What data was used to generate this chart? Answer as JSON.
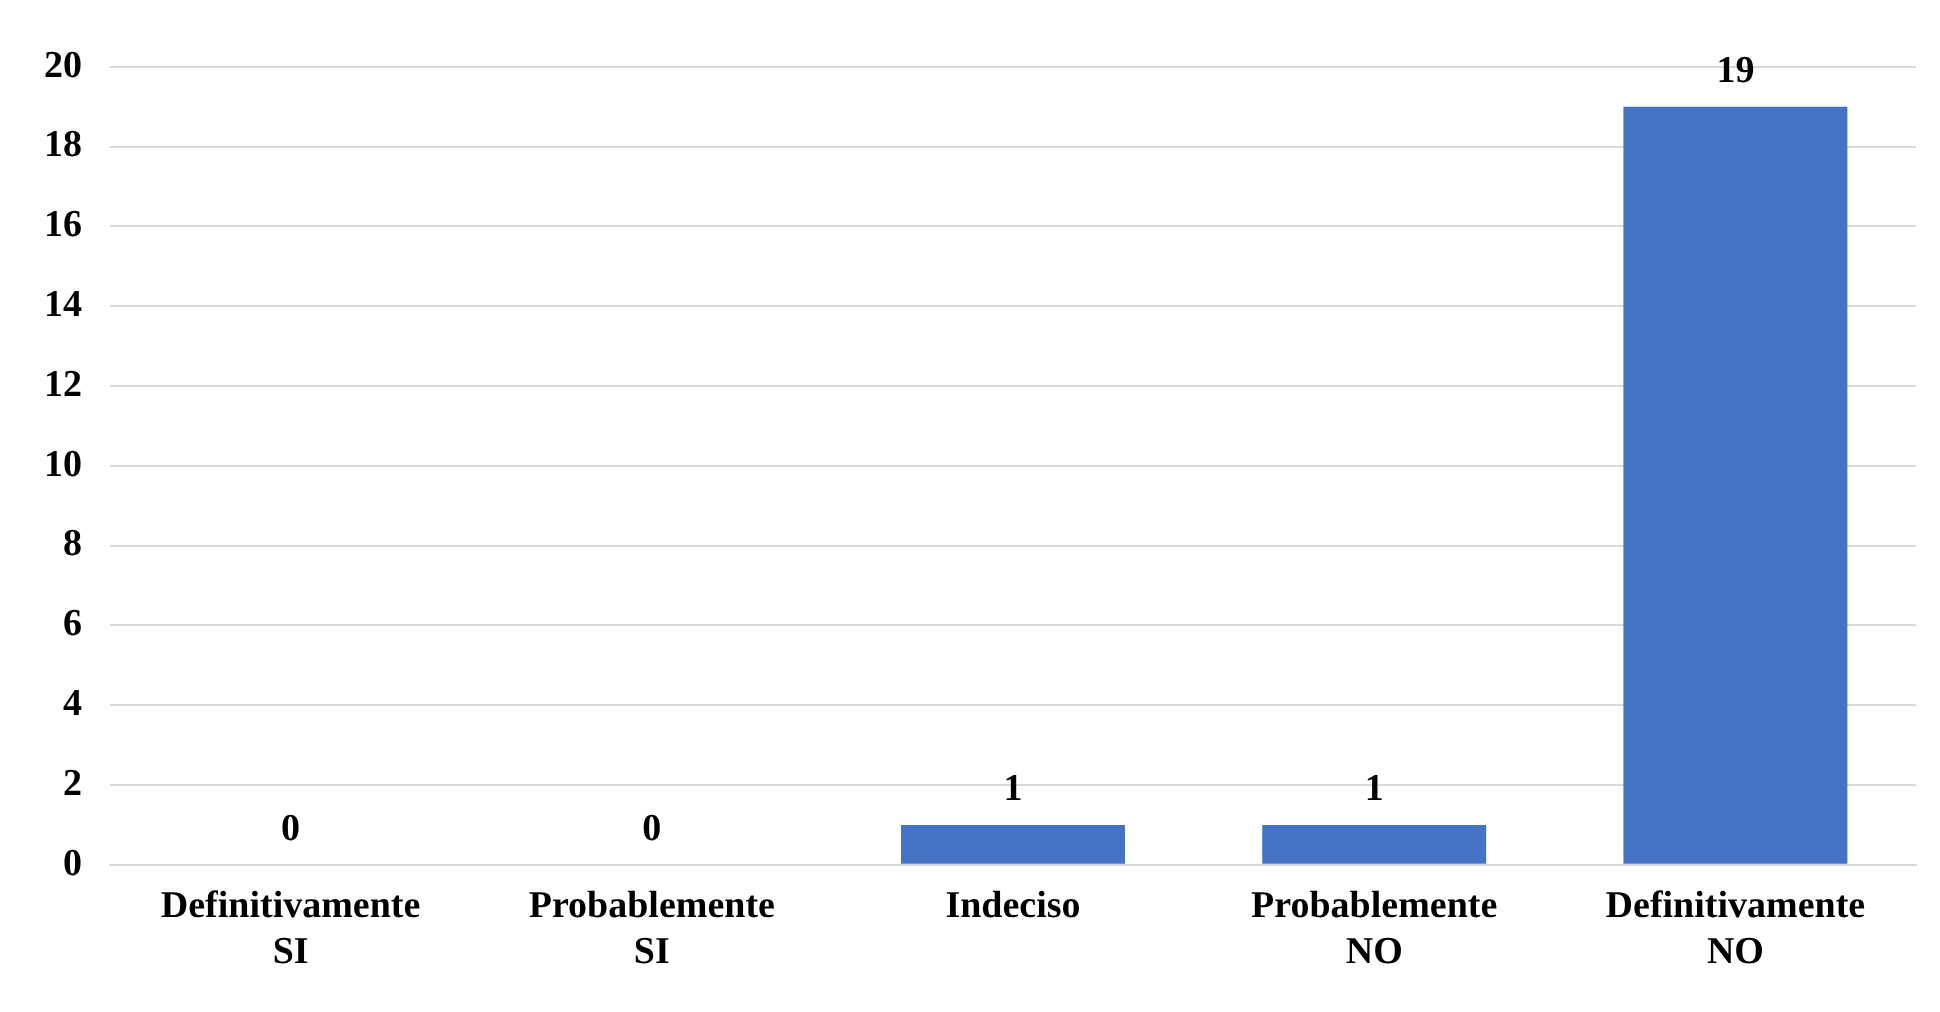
{
  "chart_data": {
    "type": "bar",
    "categories": [
      "Definitivamente SI",
      "Probablemente SI",
      "Indeciso",
      "Probablemente NO",
      "Definitivamente NO"
    ],
    "values": [
      0,
      0,
      1,
      1,
      19
    ],
    "color": "#4472c4",
    "ylim": [
      0,
      20
    ],
    "yticks": [
      0,
      2,
      4,
      6,
      8,
      10,
      12,
      14,
      16,
      18,
      20
    ],
    "grid": "y",
    "data_labels": true,
    "legend": false
  }
}
